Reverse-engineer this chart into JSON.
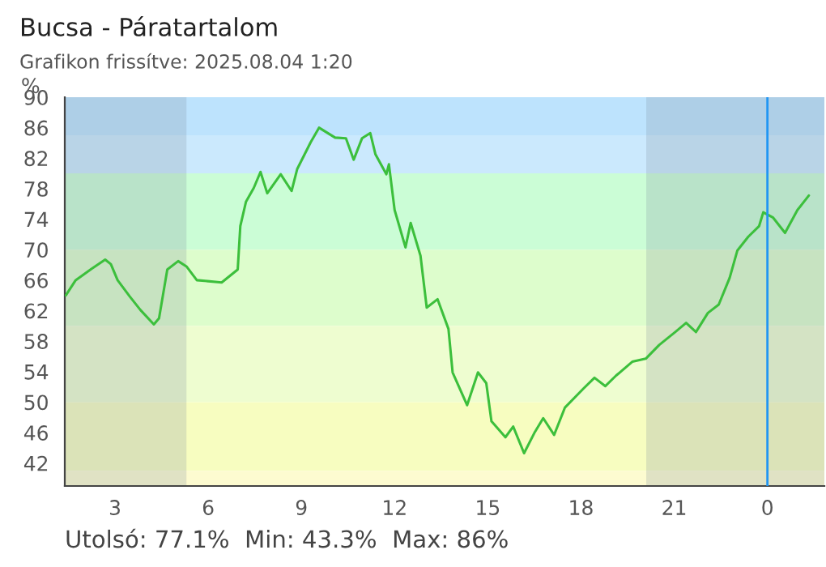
{
  "chart_data": {
    "type": "line",
    "title": "Bucsa - Páratartalom",
    "subtitle": "Grafikon frissítve: 2025.08.04 1:20",
    "ylabel": "%",
    "annotations": [
      "Utolsó: 77.1%  Min: 43.3%  Max: 86%"
    ],
    "series": [
      {
        "color": "#3cbf3c",
        "x": [
          "2025-08-03T01:25",
          "2025-08-03T01:44",
          "2025-08-03T02:15",
          "2025-08-03T02:41",
          "2025-08-03T02:52",
          "2025-08-03T03:05",
          "2025-08-03T03:28",
          "2025-08-03T03:49",
          "2025-08-03T04:15",
          "2025-08-03T04:25",
          "2025-08-03T04:41",
          "2025-08-03T05:02",
          "2025-08-03T05:18",
          "2025-08-03T05:38",
          "2025-08-03T06:26",
          "2025-08-03T06:57",
          "2025-08-03T07:02",
          "2025-08-03T07:13",
          "2025-08-03T07:28",
          "2025-08-03T07:41",
          "2025-08-03T07:54",
          "2025-08-03T08:20",
          "2025-08-03T08:41",
          "2025-08-03T08:52",
          "2025-08-03T09:18",
          "2025-08-03T09:34",
          "2025-08-03T10:05",
          "2025-08-03T10:26",
          "2025-08-03T10:41",
          "2025-08-03T10:57",
          "2025-08-03T11:13",
          "2025-08-03T11:23",
          "2025-08-03T11:44",
          "2025-08-03T11:49",
          "2025-08-03T12:00",
          "2025-08-03T12:21",
          "2025-08-03T12:31",
          "2025-08-03T12:50",
          "2025-08-03T13:02",
          "2025-08-03T13:23",
          "2025-08-03T13:44",
          "2025-08-03T13:52",
          "2025-08-03T14:20",
          "2025-08-03T14:41",
          "2025-08-03T14:57",
          "2025-08-03T15:07",
          "2025-08-03T15:34",
          "2025-08-03T15:49",
          "2025-08-03T16:10",
          "2025-08-03T16:31",
          "2025-08-03T16:47",
          "2025-08-03T17:08",
          "2025-08-03T17:29",
          "2025-08-03T18:05",
          "2025-08-03T18:26",
          "2025-08-03T18:47",
          "2025-08-03T19:08",
          "2025-08-03T19:39",
          "2025-08-03T20:05",
          "2025-08-03T20:31",
          "2025-08-03T21:02",
          "2025-08-03T21:23",
          "2025-08-03T21:42",
          "2025-08-03T22:05",
          "2025-08-03T22:26",
          "2025-08-03T22:47",
          "2025-08-03T23:02",
          "2025-08-03T23:23",
          "2025-08-03T23:44",
          "2025-08-03T23:52",
          "2025-08-04T00:11",
          "2025-08-04T00:34",
          "2025-08-04T00:58",
          "2025-08-04T01:20"
        ],
        "values": [
          64.0,
          66.0,
          67.5,
          68.7,
          68.1,
          66.0,
          63.9,
          62.1,
          60.2,
          61.0,
          67.4,
          68.5,
          67.8,
          66.0,
          65.7,
          67.4,
          73.1,
          76.3,
          78.1,
          80.2,
          77.4,
          79.9,
          77.7,
          80.6,
          84.1,
          86.0,
          84.7,
          84.6,
          81.8,
          84.6,
          85.3,
          82.5,
          79.9,
          81.2,
          75.2,
          70.3,
          73.5,
          69.2,
          62.4,
          63.5,
          59.6,
          53.9,
          49.6,
          53.9,
          52.5,
          47.5,
          45.4,
          46.8,
          43.3,
          46.1,
          47.9,
          45.7,
          49.3,
          51.8,
          53.2,
          52.1,
          53.5,
          55.3,
          55.7,
          57.5,
          59.2,
          60.4,
          59.2,
          61.7,
          62.8,
          66.3,
          69.9,
          71.7,
          73.1,
          74.9,
          74.2,
          72.2,
          75.2,
          77.1
        ]
      }
    ],
    "xlim": [
      "2025-08-03T01:23",
      "2025-08-04T01:50"
    ],
    "ylim": [
      39,
      90
    ],
    "xticks": [
      {
        "value": "2025-08-03T03:00",
        "label": "3"
      },
      {
        "value": "2025-08-03T06:00",
        "label": "6"
      },
      {
        "value": "2025-08-03T09:00",
        "label": "9"
      },
      {
        "value": "2025-08-03T12:00",
        "label": "12"
      },
      {
        "value": "2025-08-03T15:00",
        "label": "15"
      },
      {
        "value": "2025-08-03T18:00",
        "label": "18"
      },
      {
        "value": "2025-08-03T21:00",
        "label": "21"
      },
      {
        "value": "2025-08-04T00:00",
        "label": "0"
      }
    ],
    "yticks": [
      42,
      46,
      50,
      54,
      58,
      62,
      66,
      70,
      74,
      78,
      82,
      86,
      90
    ],
    "bands": [
      {
        "axis": "y",
        "from": 85,
        "to": 90,
        "color": "#bde3fd"
      },
      {
        "axis": "y",
        "from": 80,
        "to": 85,
        "color": "#cbe9fd"
      },
      {
        "axis": "y",
        "from": 70,
        "to": 80,
        "color": "#cbfdd6"
      },
      {
        "axis": "y",
        "from": 60,
        "to": 70,
        "color": "#ddfdcc"
      },
      {
        "axis": "y",
        "from": 50,
        "to": 60,
        "color": "#eefdd0"
      },
      {
        "axis": "y",
        "from": 41,
        "to": 50,
        "color": "#f7fdc0"
      },
      {
        "axis": "y",
        "from": 39,
        "to": 41,
        "color": "#fdfbd0"
      },
      {
        "axis": "x",
        "from": "2025-08-03T01:23",
        "to": "2025-08-03T05:18",
        "color": "#7a8a9a"
      },
      {
        "axis": "x",
        "from": "2025-08-03T20:06",
        "to": "2025-08-04T01:50",
        "color": "#7a8a9a"
      }
    ],
    "ref_lines": [
      {
        "axis": "x",
        "value": "2025-08-04T00:00",
        "color": "#2196f3"
      }
    ],
    "grid": false,
    "legend": false,
    "marker": "none",
    "line_style": "solid"
  }
}
